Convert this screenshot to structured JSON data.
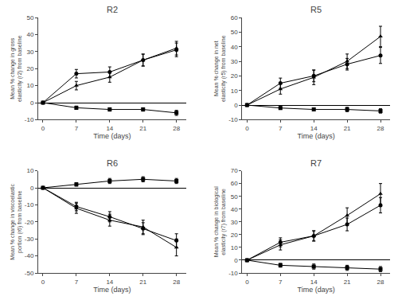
{
  "chart_data": [
    {
      "type": "line",
      "title": "R2",
      "xlabel": "Time (days)",
      "ylabel": "Mean % change in gross elasticity (r2) from baseline",
      "x": [
        0,
        7,
        14,
        21,
        28
      ],
      "grid": false,
      "series": [
        {
          "color": "black",
          "marker": "square",
          "line_style": "solid",
          "values": [
            0,
            -3,
            -4,
            -4,
            -6
          ],
          "errors": [
            0,
            1.0,
            1.0,
            1.0,
            1.5
          ]
        },
        {
          "color": "black",
          "marker": "circle",
          "line_style": "solid",
          "values": [
            0,
            17,
            18,
            25,
            31
          ],
          "errors": [
            0,
            2.5,
            3.0,
            3.5,
            4.0
          ]
        },
        {
          "color": "black",
          "marker": "triangle-up",
          "line_style": "solid",
          "values": [
            0,
            10,
            15,
            25,
            32
          ],
          "errors": [
            0,
            2.5,
            3.0,
            3.5,
            4.0
          ]
        }
      ],
      "xlim": [
        -1,
        30
      ],
      "xticks": [
        0,
        7,
        14,
        21,
        28
      ],
      "ylim": [
        -10,
        50
      ],
      "yticks": [
        -10,
        0,
        10,
        20,
        30,
        40,
        50
      ]
    },
    {
      "type": "line",
      "title": "R5",
      "xlabel": "Time (days)",
      "ylabel": "Mean % change in net elasticity (r5) from baseline",
      "x": [
        0,
        7,
        14,
        21,
        28
      ],
      "grid": false,
      "series": [
        {
          "color": "black",
          "marker": "square",
          "line_style": "solid",
          "values": [
            0,
            -2,
            -3,
            -3,
            -4
          ],
          "errors": [
            0,
            1.0,
            1.0,
            1.5,
            1.5
          ]
        },
        {
          "color": "black",
          "marker": "circle",
          "line_style": "solid",
          "values": [
            0,
            15,
            20,
            28,
            34
          ],
          "errors": [
            0,
            3.5,
            4.0,
            4.0,
            5.5
          ]
        },
        {
          "color": "black",
          "marker": "triangle-up",
          "line_style": "solid",
          "values": [
            0,
            11,
            19,
            30,
            47
          ],
          "errors": [
            0,
            3.5,
            5.0,
            5.0,
            7.0
          ]
        }
      ],
      "xlim": [
        -1,
        30
      ],
      "xticks": [
        0,
        7,
        14,
        21,
        28
      ],
      "ylim": [
        -10,
        60
      ],
      "yticks": [
        -10,
        0,
        10,
        20,
        30,
        40,
        50,
        60
      ]
    },
    {
      "type": "line",
      "title": "R6",
      "xlabel": "Time (days)",
      "ylabel": "Mean % change in viscoelastic portion (r6) from baseline",
      "x": [
        0,
        7,
        14,
        21,
        28
      ],
      "grid": false,
      "series": [
        {
          "color": "black",
          "marker": "square",
          "line_style": "solid",
          "values": [
            0,
            2,
            4,
            5,
            4
          ],
          "errors": [
            0,
            1.0,
            1.5,
            1.5,
            1.5
          ]
        },
        {
          "color": "black",
          "marker": "circle",
          "line_style": "solid",
          "values": [
            0,
            -11,
            -17,
            -24,
            -31
          ],
          "errors": [
            0,
            2.5,
            3.0,
            3.5,
            4.0
          ]
        },
        {
          "color": "black",
          "marker": "triangle-up",
          "line_style": "solid",
          "values": [
            0,
            -12,
            -19,
            -23,
            -35
          ],
          "errors": [
            0,
            3.0,
            3.5,
            4.0,
            5.0
          ]
        }
      ],
      "xlim": [
        -1,
        30
      ],
      "xticks": [
        0,
        7,
        14,
        21,
        28
      ],
      "ylim": [
        -50,
        10
      ],
      "yticks": [
        -50,
        -40,
        -30,
        -20,
        -10,
        0,
        10
      ]
    },
    {
      "type": "line",
      "title": "R7",
      "xlabel": "Time (days)",
      "ylabel": "Mean % change in biological elasticity (r7) from baseline",
      "x": [
        0,
        7,
        14,
        21,
        28
      ],
      "grid": false,
      "series": [
        {
          "color": "black",
          "marker": "square",
          "line_style": "solid",
          "values": [
            0,
            -4,
            -5,
            -6,
            -7
          ],
          "errors": [
            0,
            1.5,
            2.0,
            2.0,
            2.0
          ]
        },
        {
          "color": "black",
          "marker": "circle",
          "line_style": "solid",
          "values": [
            0,
            14,
            19,
            28,
            43
          ],
          "errors": [
            0,
            3.5,
            4.0,
            5.0,
            6.0
          ]
        },
        {
          "color": "black",
          "marker": "triangle-up",
          "line_style": "solid",
          "values": [
            0,
            12,
            19,
            35,
            52
          ],
          "errors": [
            0,
            4.0,
            4.0,
            6.0,
            8.0
          ]
        }
      ],
      "xlim": [
        -1,
        30
      ],
      "xticks": [
        0,
        7,
        14,
        21,
        28
      ],
      "ylim": [
        -10,
        70
      ],
      "yticks": [
        -10,
        0,
        10,
        20,
        30,
        40,
        50,
        60,
        70
      ]
    }
  ]
}
